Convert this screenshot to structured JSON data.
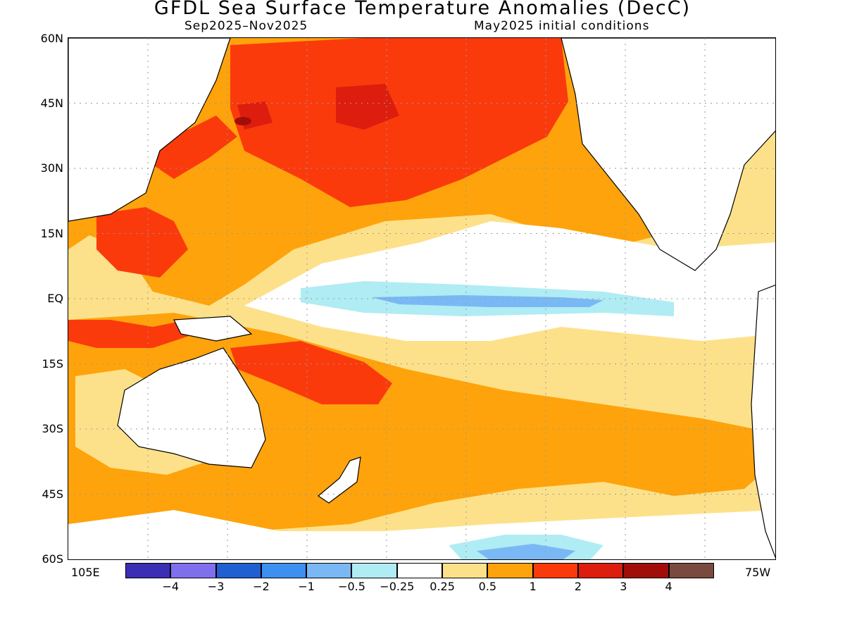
{
  "title": "GFDL Sea Surface Temperature Anomalies (DecC)",
  "subtitle_left": "Sep2025–Nov2025",
  "subtitle_right": "May2025 initial conditions",
  "lat_labels": [
    "60N",
    "45N",
    "30N",
    "15N",
    "EQ",
    "15S",
    "30S",
    "45S",
    "60S"
  ],
  "lon_left": "105E",
  "lon_right": "75W",
  "colorbar": {
    "colors": [
      "#3b2db4",
      "#7f6fec",
      "#1f5fd1",
      "#3d8ff0",
      "#7ab8f5",
      "#b0ecf4",
      "#ffffff",
      "#fde18a",
      "#fea30b",
      "#fb3a0c",
      "#dd1d0d",
      "#a10e0a",
      "#7b4a3e"
    ],
    "ticks": [
      "−4",
      "−3",
      "−2",
      "−1",
      "−0.5",
      "−0.25",
      "0.25",
      "0.5",
      "1",
      "2",
      "3",
      "4"
    ]
  }
}
